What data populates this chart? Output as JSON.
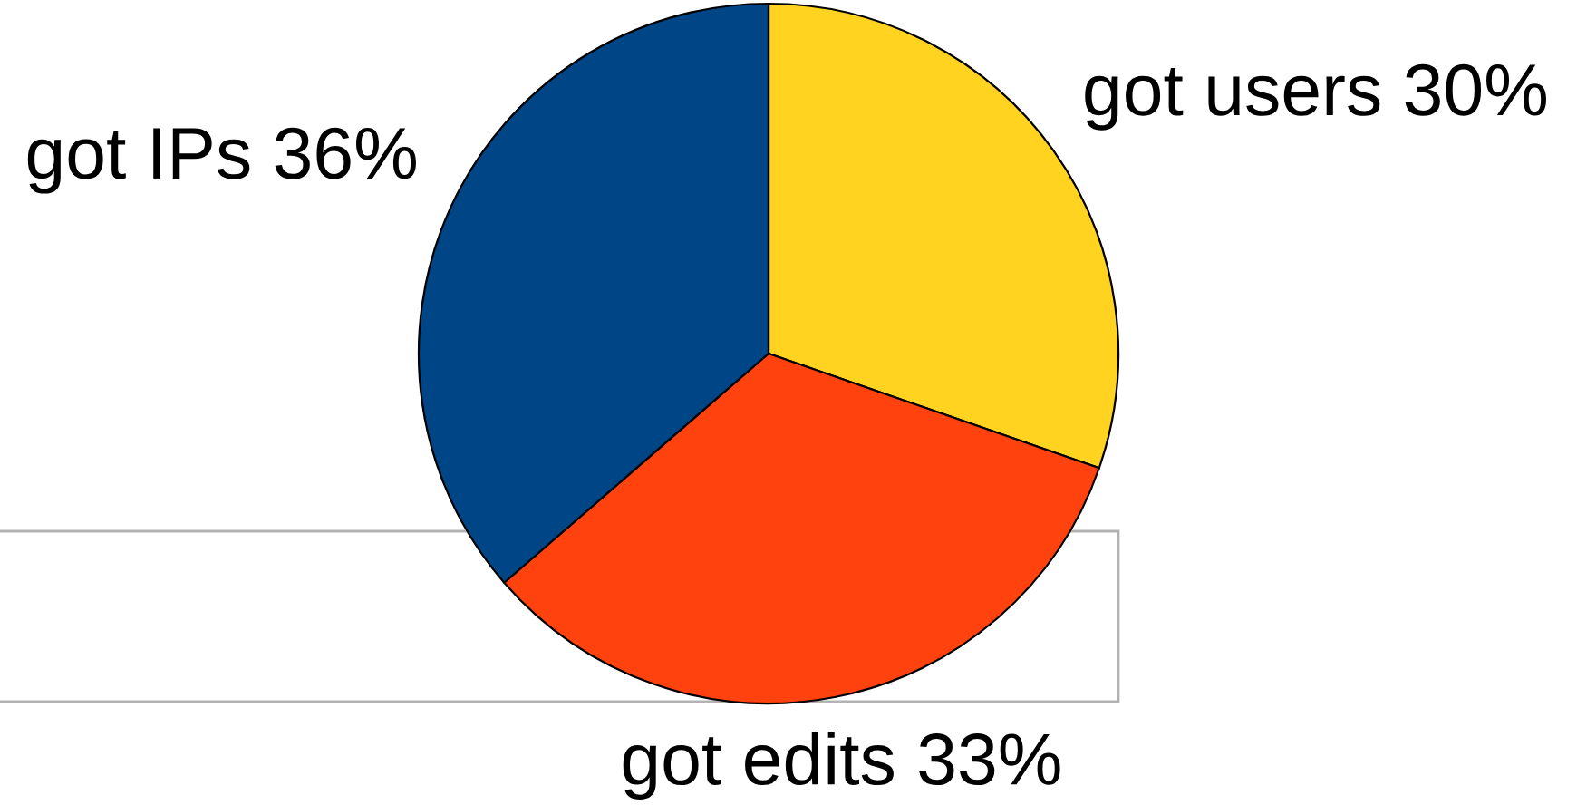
{
  "chart_data": {
    "type": "pie",
    "categories": [
      "got users",
      "got edits",
      "got IPs"
    ],
    "values": [
      30,
      33,
      36
    ],
    "colors": [
      "#ffd320",
      "#ff420e",
      "#004586"
    ],
    "value_labels": [
      "30%",
      "33%",
      "36%"
    ]
  }
}
